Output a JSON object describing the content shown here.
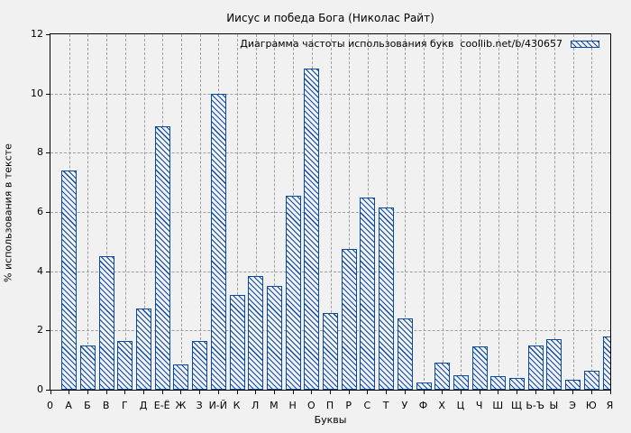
{
  "colors": {
    "background": "#f1f1f1",
    "bar_blue": "#0b4aa2",
    "grid_gray": "#9e9e9e",
    "frame_black": "#000000"
  },
  "chart_data": {
    "type": "bar",
    "title": "Иисус и победа Бога (Николас Райт)",
    "legend_label": "Диаграмма частоты использования букв  coollib.net/b/430657",
    "legend_position": "top-right-inside",
    "xlabel": "Буквы",
    "ylabel": "% использования в тексте",
    "x_origin_label": "0",
    "ylim": [
      0,
      12
    ],
    "yticks": [
      0,
      2,
      4,
      6,
      8,
      10,
      12
    ],
    "grid": true,
    "hatch": "diagonal-backslash",
    "categories": [
      "А",
      "Б",
      "В",
      "Г",
      "Д",
      "Е-Ё",
      "Ж",
      "З",
      "И-Й",
      "К",
      "Л",
      "М",
      "Н",
      "О",
      "П",
      "Р",
      "С",
      "Т",
      "У",
      "Ф",
      "Х",
      "Ц",
      "Ч",
      "Ш",
      "Щ",
      "Ь-Ъ",
      "Ы",
      "Э",
      "Ю",
      "Я"
    ],
    "values": [
      7.4,
      1.5,
      4.5,
      1.65,
      2.75,
      8.9,
      0.85,
      1.65,
      10.0,
      3.2,
      3.85,
      3.5,
      6.55,
      10.85,
      2.6,
      4.75,
      6.5,
      6.15,
      2.4,
      0.25,
      0.9,
      0.5,
      1.45,
      0.45,
      0.4,
      1.5,
      1.7,
      0.35,
      0.65,
      1.8
    ]
  }
}
